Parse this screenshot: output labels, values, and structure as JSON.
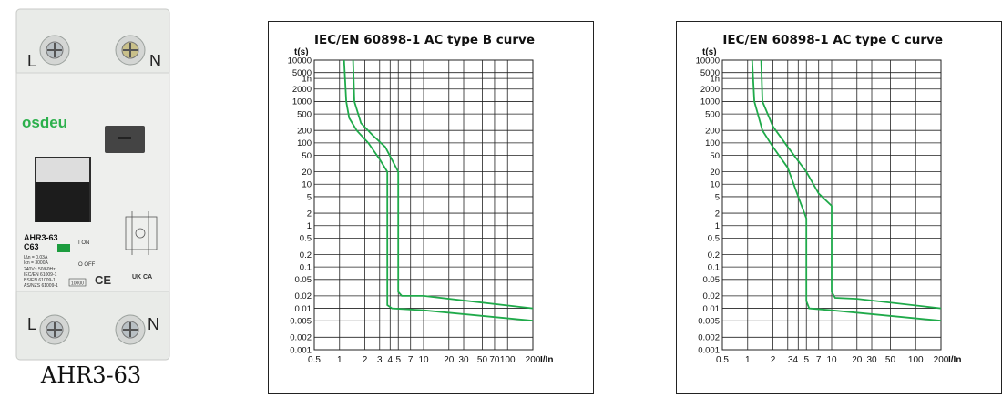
{
  "product": {
    "model_caption": "AHR3-63",
    "brand": "osdeu",
    "label_model": "AHR3-63",
    "label_rating": "C63",
    "label_specs": [
      "IΔn = 0.03A",
      "Icn = 3000A",
      "240V~ 50/60Hz",
      "IEC/EN 61009-1",
      "BS/EN 61009-1",
      "AS/NZS 61009-1"
    ],
    "label_box": "10000",
    "on_label": "I ON",
    "off_label": "O OFF",
    "terminal_top_left": "L",
    "terminal_top_right": "N",
    "terminal_bottom_left": "L",
    "terminal_bottom_right": "N",
    "marks": "CE",
    "ukca": "UK CA"
  },
  "chart_data": [
    {
      "type": "line",
      "title": "IEC/EN 60898-1 AC type B curve",
      "ylabel": "t(s)",
      "xlabel": "I/In",
      "xscale": "log",
      "yscale": "log",
      "x_ticks": [
        "0.5",
        "1",
        "2",
        "3",
        "4",
        "5",
        "7",
        "10",
        "20",
        "30",
        "50",
        "70",
        "100",
        "200"
      ],
      "y_ticks": [
        "10000",
        "5000",
        "1h",
        "2000",
        "1000",
        "500",
        "200",
        "100",
        "50",
        "20",
        "10",
        "5",
        "2",
        "1",
        "0.5",
        "0.2",
        "0.1",
        "0.05",
        "0.02",
        "0.01",
        "0.005",
        "0.002",
        "0.001"
      ],
      "series": [
        {
          "points": [
            [
              1.13,
              10000
            ],
            [
              1.2,
              1000
            ],
            [
              1.3,
              400
            ],
            [
              1.6,
              200
            ],
            [
              2.2,
              100
            ],
            [
              3,
              40
            ],
            [
              3.7,
              20
            ],
            [
              3.7,
              0.012
            ],
            [
              4.2,
              0.01
            ],
            [
              10,
              0.009
            ],
            [
              200,
              0.005
            ]
          ]
        },
        {
          "points": [
            [
              1.45,
              10000
            ],
            [
              1.5,
              1000
            ],
            [
              1.8,
              300
            ],
            [
              2.5,
              150
            ],
            [
              3.5,
              80
            ],
            [
              5,
              20
            ],
            [
              5,
              0.025
            ],
            [
              5.5,
              0.02
            ],
            [
              10,
              0.02
            ],
            [
              200,
              0.01
            ]
          ]
        }
      ],
      "color": "#1faa4a"
    },
    {
      "type": "line",
      "title": "IEC/EN 60898-1 AC type C curve",
      "ylabel": "t(s)",
      "xlabel": "I/In",
      "xscale": "log",
      "yscale": "log",
      "x_ticks": [
        "0.5",
        "1",
        "2",
        "3",
        "4",
        "5",
        "7",
        "10",
        "20",
        "30",
        "50",
        "100",
        "200"
      ],
      "x_tick_text": [
        "0.5",
        "1",
        "2",
        "34",
        "5",
        "7",
        "10",
        "20",
        "30",
        "50",
        "100",
        "200"
      ],
      "y_ticks": [
        "10000",
        "5000",
        "1h",
        "2000",
        "1000",
        "500",
        "200",
        "100",
        "50",
        "20",
        "10",
        "5",
        "2",
        "1",
        "0.5",
        "0.2",
        "0.1",
        "0.05",
        "0.02",
        "0.01",
        "0.005",
        "0.002",
        "0.001"
      ],
      "series": [
        {
          "points": [
            [
              1.13,
              10000
            ],
            [
              1.2,
              1000
            ],
            [
              1.5,
              200
            ],
            [
              2,
              80
            ],
            [
              3,
              25
            ],
            [
              4,
              5
            ],
            [
              5,
              1.5
            ],
            [
              5,
              0.015
            ],
            [
              5.4,
              0.01
            ],
            [
              10,
              0.009
            ],
            [
              200,
              0.005
            ]
          ]
        },
        {
          "points": [
            [
              1.45,
              10000
            ],
            [
              1.5,
              1000
            ],
            [
              2,
              250
            ],
            [
              3,
              80
            ],
            [
              5,
              20
            ],
            [
              7,
              6
            ],
            [
              10,
              3
            ],
            [
              10,
              0.025
            ],
            [
              11,
              0.018
            ],
            [
              20,
              0.017
            ],
            [
              200,
              0.01
            ]
          ]
        }
      ],
      "color": "#1faa4a"
    }
  ]
}
